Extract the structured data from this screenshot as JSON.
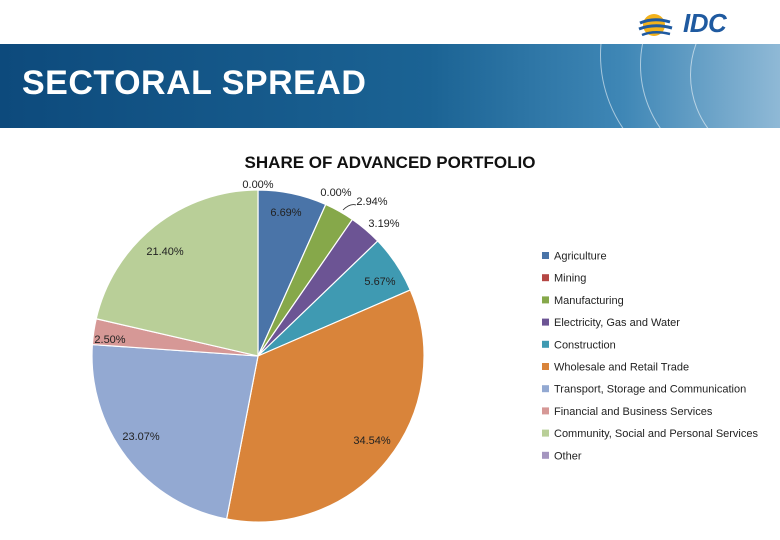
{
  "slide": {
    "title": "SECTORAL SPREAD",
    "logo_text": "IDC"
  },
  "colors": {
    "header_dark": "#0d4a7c",
    "header_light": "#8fb9d6",
    "logo": "#1f5aa0"
  },
  "chart_data": {
    "type": "pie",
    "title": "SHARE OF ADVANCED PORTFOLIO",
    "legend_position": "right",
    "slices": [
      {
        "name": "Agriculture",
        "value": 6.69,
        "label": "6.69%",
        "color": "#4a74a8"
      },
      {
        "name": "Mining",
        "value": 0.0,
        "label": "0.00%",
        "color": "#b54744"
      },
      {
        "name": "Manufacturing",
        "value": 2.94,
        "label": "2.94%",
        "color": "#86a84a"
      },
      {
        "name": "Electricity, Gas and Water",
        "value": 3.19,
        "label": "3.19%",
        "color": "#6c5494"
      },
      {
        "name": "Construction",
        "value": 5.67,
        "label": "5.67%",
        "color": "#3f9ab2"
      },
      {
        "name": "Wholesale and Retail Trade",
        "value": 34.54,
        "label": "34.54%",
        "color": "#d9843a"
      },
      {
        "name": "Transport, Storage and Communication",
        "value": 23.07,
        "label": "23.07%",
        "color": "#93a9d2"
      },
      {
        "name": "Financial and Business Services",
        "value": 2.5,
        "label": "2.50%",
        "color": "#d69896"
      },
      {
        "name": "Community, Social and Personal Services",
        "value": 21.4,
        "label": "21.40%",
        "color": "#b9cf98"
      },
      {
        "name": "Other",
        "value": 0.0,
        "label": "0.00%",
        "color": "#a495bf"
      }
    ]
  }
}
